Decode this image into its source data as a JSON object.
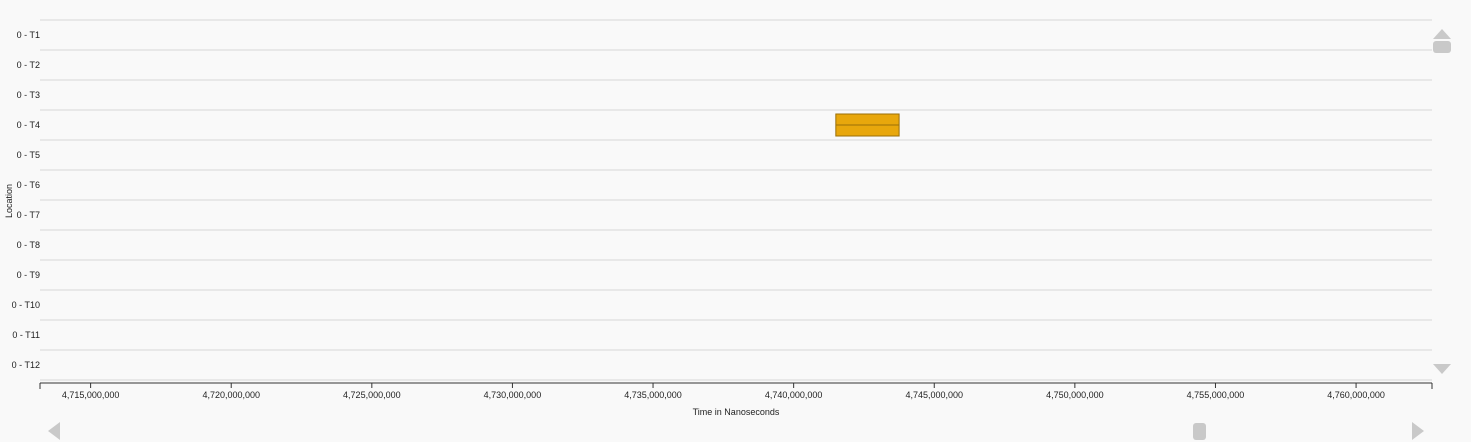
{
  "chart_data": {
    "type": "gantt",
    "title": "",
    "xlabel": "Time in Nanoseconds",
    "ylabel": "Location",
    "x_range": [
      4713200000,
      4762700000
    ],
    "categories": [
      "0 - T1",
      "0 - T2",
      "0 - T3",
      "0 - T4",
      "0 - T5",
      "0 - T6",
      "0 - T7",
      "0 - T8",
      "0 - T9",
      "0 - T10",
      "0 - T11",
      "0 - T12"
    ],
    "x_ticks": [
      4715000000,
      4720000000,
      4725000000,
      4730000000,
      4735000000,
      4740000000,
      4745000000,
      4750000000,
      4755000000,
      4760000000
    ],
    "x_tick_labels": [
      "4,715,000,000",
      "4,720,000,000",
      "4,725,000,000",
      "4,730,000,000",
      "4,735,000,000",
      "4,740,000,000",
      "4,745,000,000",
      "4,750,000,000",
      "4,755,000,000",
      "4,760,000,000"
    ],
    "bars": [
      {
        "category": "0 - T4",
        "start": 4741500000,
        "end": 4743750000,
        "color": "#e8a70c",
        "border": "#9a6f08"
      }
    ],
    "grid": true
  },
  "scroll": {
    "vertical_position": 0.0,
    "horizontal_position": 0.88
  },
  "colors": {
    "background": "#f9f9f9",
    "grid": "#d8d8d8",
    "bar": "#e8a70c",
    "scroll_controls": "#c9c9c9"
  }
}
